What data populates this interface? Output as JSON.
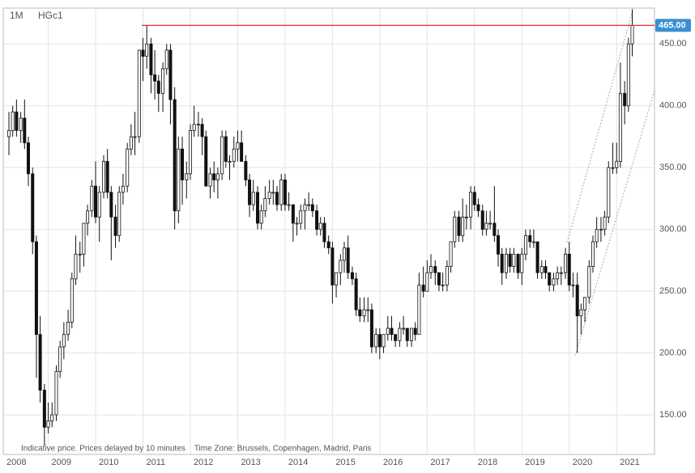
{
  "chart_data": {
    "type": "candlestick",
    "period": "1M",
    "symbol": "HGc1",
    "note": "Indicative price. Prices delayed by 10 minutes    Time Zone: Brussels, Copenhagen, Madrid, Paris",
    "xlim": [
      2008.05,
      2021.8
    ],
    "ylim": [
      118,
      479
    ],
    "xticks": [
      2008,
      2009,
      2010,
      2011,
      2012,
      2013,
      2014,
      2015,
      2016,
      2017,
      2018,
      2019,
      2020,
      2021
    ],
    "yticks": [
      {
        "value": 150,
        "label": "150.00"
      },
      {
        "value": 200,
        "label": "200.00"
      },
      {
        "value": 250,
        "label": "250.00"
      },
      {
        "value": 300,
        "label": "300.00"
      },
      {
        "value": 350,
        "label": "350.00"
      },
      {
        "value": 400,
        "label": "400.00"
      },
      {
        "value": 450,
        "label": "450.00"
      }
    ],
    "last_price": {
      "value": 465,
      "label": "465.00"
    },
    "grid": true,
    "up_color": "#ffffff",
    "down_color": "#111111",
    "line_color": "#e03030",
    "label_color": "#3a8fd0",
    "x": [
      2008.17,
      2008.25,
      2008.33,
      2008.42,
      2008.5,
      2008.58,
      2008.67,
      2008.75,
      2008.83,
      2008.92,
      2009,
      2009.08,
      2009.17,
      2009.25,
      2009.33,
      2009.42,
      2009.5,
      2009.58,
      2009.67,
      2009.75,
      2009.83,
      2009.92,
      2010,
      2010.08,
      2010.17,
      2010.25,
      2010.33,
      2010.42,
      2010.5,
      2010.58,
      2010.67,
      2010.75,
      2010.83,
      2010.92,
      2011,
      2011.08,
      2011.17,
      2011.25,
      2011.33,
      2011.42,
      2011.5,
      2011.58,
      2011.67,
      2011.75,
      2011.83,
      2011.92,
      2012,
      2012.08,
      2012.17,
      2012.25,
      2012.33,
      2012.42,
      2012.5,
      2012.58,
      2012.67,
      2012.75,
      2012.83,
      2012.92,
      2013,
      2013.08,
      2013.17,
      2013.25,
      2013.33,
      2013.42,
      2013.5,
      2013.58,
      2013.67,
      2013.75,
      2013.83,
      2013.92,
      2014,
      2014.08,
      2014.17,
      2014.25,
      2014.33,
      2014.42,
      2014.5,
      2014.58,
      2014.67,
      2014.75,
      2014.83,
      2014.92,
      2015,
      2015.08,
      2015.17,
      2015.25,
      2015.33,
      2015.42,
      2015.5,
      2015.58,
      2015.67,
      2015.75,
      2015.83,
      2015.92,
      2016,
      2016.08,
      2016.17,
      2016.25,
      2016.33,
      2016.42,
      2016.5,
      2016.58,
      2016.67,
      2016.75,
      2016.83,
      2016.92,
      2017,
      2017.08,
      2017.17,
      2017.25,
      2017.33,
      2017.42,
      2017.5,
      2017.58,
      2017.67,
      2017.75,
      2017.83,
      2017.92,
      2018,
      2018.08,
      2018.17,
      2018.25,
      2018.33,
      2018.42,
      2018.5,
      2018.58,
      2018.67,
      2018.75,
      2018.83,
      2018.92,
      2019,
      2019.08,
      2019.17,
      2019.25,
      2019.33,
      2019.42,
      2019.5,
      2019.58,
      2019.67,
      2019.75,
      2019.83,
      2019.92,
      2020,
      2020.08,
      2020.17,
      2020.25,
      2020.33,
      2020.42,
      2020.5,
      2020.58,
      2020.67,
      2020.75,
      2020.83,
      2020.92,
      2021,
      2021.08,
      2021.17,
      2021.25,
      2021.33
    ],
    "series": [
      {
        "ohlc": [
          [
            375,
            395,
            360,
            380
          ],
          [
            380,
            400,
            375,
            395
          ],
          [
            395,
            405,
            375,
            380
          ],
          [
            380,
            395,
            370,
            390
          ],
          [
            390,
            405,
            365,
            370
          ],
          [
            370,
            375,
            335,
            345
          ],
          [
            345,
            350,
            280,
            290
          ],
          [
            290,
            295,
            180,
            215
          ],
          [
            215,
            230,
            160,
            170
          ],
          [
            170,
            175,
            125,
            140
          ],
          [
            140,
            160,
            135,
            145
          ],
          [
            145,
            160,
            140,
            150
          ],
          [
            150,
            190,
            145,
            185
          ],
          [
            185,
            210,
            180,
            205
          ],
          [
            205,
            225,
            195,
            215
          ],
          [
            215,
            235,
            210,
            225
          ],
          [
            225,
            265,
            220,
            260
          ],
          [
            260,
            295,
            255,
            280
          ],
          [
            280,
            290,
            265,
            280
          ],
          [
            280,
            305,
            270,
            305
          ],
          [
            305,
            320,
            295,
            315
          ],
          [
            315,
            340,
            310,
            335
          ],
          [
            335,
            355,
            305,
            310
          ],
          [
            310,
            335,
            290,
            330
          ],
          [
            330,
            360,
            325,
            355
          ],
          [
            355,
            365,
            325,
            330
          ],
          [
            330,
            335,
            275,
            310
          ],
          [
            310,
            320,
            285,
            295
          ],
          [
            295,
            335,
            290,
            330
          ],
          [
            330,
            345,
            320,
            335
          ],
          [
            335,
            370,
            330,
            365
          ],
          [
            365,
            385,
            360,
            375
          ],
          [
            375,
            395,
            360,
            375
          ],
          [
            375,
            445,
            370,
            445
          ],
          [
            445,
            455,
            420,
            440
          ],
          [
            440,
            465,
            430,
            450
          ],
          [
            450,
            455,
            410,
            425
          ],
          [
            425,
            445,
            405,
            420
          ],
          [
            420,
            425,
            395,
            410
          ],
          [
            410,
            435,
            395,
            430
          ],
          [
            430,
            450,
            425,
            445
          ],
          [
            445,
            450,
            385,
            405
          ],
          [
            405,
            415,
            300,
            315
          ],
          [
            315,
            375,
            305,
            365
          ],
          [
            365,
            375,
            320,
            340
          ],
          [
            340,
            355,
            325,
            345
          ],
          [
            345,
            385,
            340,
            380
          ],
          [
            380,
            400,
            375,
            385
          ],
          [
            385,
            395,
            375,
            385
          ],
          [
            385,
            390,
            360,
            375
          ],
          [
            375,
            380,
            335,
            335
          ],
          [
            335,
            350,
            325,
            345
          ],
          [
            345,
            355,
            330,
            340
          ],
          [
            340,
            350,
            325,
            345
          ],
          [
            345,
            380,
            340,
            375
          ],
          [
            375,
            380,
            350,
            355
          ],
          [
            355,
            360,
            340,
            355
          ],
          [
            355,
            375,
            350,
            365
          ],
          [
            365,
            380,
            355,
            370
          ],
          [
            370,
            380,
            355,
            355
          ],
          [
            355,
            360,
            335,
            340
          ],
          [
            340,
            345,
            310,
            320
          ],
          [
            320,
            340,
            315,
            330
          ],
          [
            330,
            335,
            300,
            305
          ],
          [
            305,
            320,
            300,
            315
          ],
          [
            315,
            335,
            310,
            325
          ],
          [
            325,
            340,
            320,
            330
          ],
          [
            330,
            340,
            320,
            330
          ],
          [
            330,
            335,
            315,
            320
          ],
          [
            320,
            345,
            315,
            340
          ],
          [
            340,
            345,
            315,
            320
          ],
          [
            320,
            330,
            315,
            320
          ],
          [
            320,
            320,
            290,
            305
          ],
          [
            305,
            310,
            295,
            305
          ],
          [
            305,
            320,
            300,
            315
          ],
          [
            315,
            325,
            300,
            320
          ],
          [
            320,
            330,
            315,
            320
          ],
          [
            320,
            325,
            310,
            315
          ],
          [
            315,
            320,
            295,
            300
          ],
          [
            300,
            310,
            295,
            305
          ],
          [
            305,
            310,
            285,
            290
          ],
          [
            290,
            295,
            280,
            285
          ],
          [
            285,
            290,
            240,
            255
          ],
          [
            255,
            265,
            245,
            265
          ],
          [
            265,
            280,
            255,
            275
          ],
          [
            275,
            290,
            265,
            285
          ],
          [
            285,
            295,
            260,
            265
          ],
          [
            265,
            270,
            255,
            260
          ],
          [
            260,
            265,
            230,
            235
          ],
          [
            235,
            245,
            225,
            230
          ],
          [
            230,
            245,
            225,
            235
          ],
          [
            235,
            245,
            225,
            235
          ],
          [
            235,
            240,
            200,
            205
          ],
          [
            205,
            220,
            200,
            215
          ],
          [
            215,
            220,
            195,
            205
          ],
          [
            205,
            215,
            200,
            215
          ],
          [
            215,
            230,
            210,
            220
          ],
          [
            220,
            230,
            210,
            215
          ],
          [
            215,
            215,
            205,
            210
          ],
          [
            210,
            225,
            205,
            220
          ],
          [
            220,
            230,
            215,
            220
          ],
          [
            220,
            220,
            205,
            210
          ],
          [
            210,
            220,
            205,
            220
          ],
          [
            220,
            225,
            210,
            215
          ],
          [
            215,
            265,
            215,
            255
          ],
          [
            255,
            270,
            245,
            250
          ],
          [
            250,
            275,
            250,
            265
          ],
          [
            265,
            280,
            260,
            270
          ],
          [
            270,
            275,
            255,
            265
          ],
          [
            265,
            265,
            250,
            255
          ],
          [
            255,
            265,
            250,
            255
          ],
          [
            255,
            275,
            250,
            270
          ],
          [
            270,
            290,
            265,
            290
          ],
          [
            290,
            315,
            285,
            310
          ],
          [
            310,
            315,
            290,
            295
          ],
          [
            295,
            325,
            290,
            310
          ],
          [
            310,
            320,
            300,
            310
          ],
          [
            310,
            335,
            300,
            330
          ],
          [
            330,
            335,
            315,
            320
          ],
          [
            320,
            325,
            310,
            315
          ],
          [
            315,
            320,
            295,
            300
          ],
          [
            300,
            315,
            295,
            305
          ],
          [
            305,
            315,
            300,
            305
          ],
          [
            305,
            335,
            290,
            295
          ],
          [
            295,
            300,
            270,
            280
          ],
          [
            280,
            285,
            255,
            265
          ],
          [
            265,
            285,
            260,
            280
          ],
          [
            280,
            285,
            265,
            270
          ],
          [
            270,
            285,
            265,
            280
          ],
          [
            280,
            280,
            260,
            265
          ],
          [
            265,
            285,
            255,
            280
          ],
          [
            280,
            300,
            275,
            295
          ],
          [
            295,
            300,
            285,
            290
          ],
          [
            290,
            300,
            285,
            290
          ],
          [
            290,
            290,
            260,
            265
          ],
          [
            265,
            275,
            260,
            270
          ],
          [
            270,
            275,
            260,
            265
          ],
          [
            265,
            265,
            250,
            255
          ],
          [
            255,
            265,
            250,
            260
          ],
          [
            260,
            270,
            255,
            265
          ],
          [
            265,
            270,
            255,
            265
          ],
          [
            265,
            285,
            260,
            280
          ],
          [
            280,
            290,
            250,
            255
          ],
          [
            255,
            265,
            245,
            255
          ],
          [
            255,
            265,
            200,
            230
          ],
          [
            230,
            240,
            215,
            235
          ],
          [
            235,
            245,
            225,
            245
          ],
          [
            245,
            275,
            240,
            270
          ],
          [
            270,
            295,
            265,
            290
          ],
          [
            290,
            310,
            285,
            300
          ],
          [
            300,
            310,
            290,
            300
          ],
          [
            300,
            315,
            295,
            310
          ],
          [
            310,
            355,
            305,
            350
          ],
          [
            350,
            370,
            345,
            350
          ],
          [
            350,
            370,
            345,
            355
          ],
          [
            355,
            435,
            350,
            410
          ],
          [
            410,
            420,
            385,
            400
          ],
          [
            400,
            455,
            395,
            450
          ],
          [
            450,
            478,
            440,
            465
          ]
        ]
      }
    ]
  }
}
